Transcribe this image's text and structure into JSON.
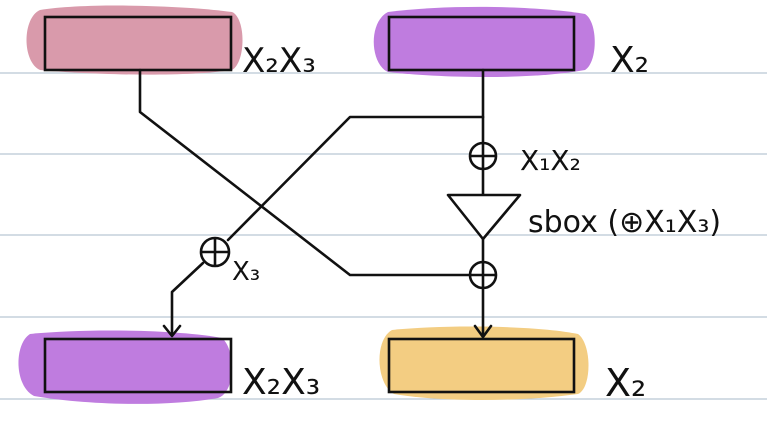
{
  "colors": {
    "ruled_line": "#b9c7d3",
    "ink": "#111111",
    "pink_highlight": "#d99aab",
    "purple_highlight": "#bf7cdf",
    "yellow_highlight": "#f3cd82"
  },
  "labels": {
    "top_left": "X₂X₃",
    "top_right": "X₂",
    "xor_top_right": "X₁X₂",
    "sbox": "sbox (⊕X₁X₃)",
    "xor_left": "X₃",
    "bottom_left": "X₂X₃",
    "bottom_right": "X₂"
  },
  "icons": {
    "xor": "circled-plus-icon",
    "sbox": "triangle-sbox-icon",
    "arrow": "arrow-down-icon"
  }
}
